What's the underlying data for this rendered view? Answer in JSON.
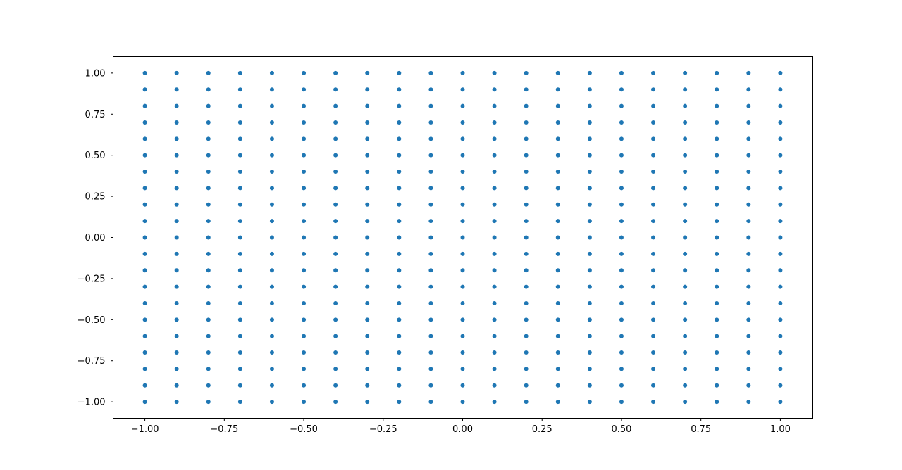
{
  "chart_data": {
    "type": "scatter",
    "title": "",
    "xlabel": "",
    "ylabel": "",
    "xlim": [
      -1.1,
      1.1
    ],
    "ylim": [
      -1.1,
      1.1
    ],
    "grid": false,
    "marker_color": "#1f77b4",
    "x_ticks": [
      -1.0,
      -0.75,
      -0.5,
      -0.25,
      0.0,
      0.25,
      0.5,
      0.75,
      1.0
    ],
    "x_tick_labels": [
      "−1.00",
      "−0.75",
      "−0.50",
      "−0.25",
      "0.00",
      "0.25",
      "0.50",
      "0.75",
      "1.00"
    ],
    "y_ticks": [
      1.0,
      0.75,
      0.5,
      0.25,
      0.0,
      -0.25,
      -0.5,
      -0.75,
      -1.0
    ],
    "y_tick_labels": [
      "1.00",
      "0.75",
      "0.50",
      "0.25",
      "0.00",
      "−0.25",
      "−0.50",
      "−0.75",
      "−1.00"
    ],
    "series": [
      {
        "grid_x": [
          -1.0,
          -0.9,
          -0.8,
          -0.7,
          -0.6,
          -0.5,
          -0.4,
          -0.3,
          -0.2,
          -0.1,
          0.0,
          0.1,
          0.2,
          0.3,
          0.4,
          0.5,
          0.6,
          0.7,
          0.8,
          0.9,
          1.0
        ],
        "grid_y": [
          -1.0,
          -0.9,
          -0.8,
          -0.7,
          -0.6,
          -0.5,
          -0.4,
          -0.3,
          -0.2,
          -0.1,
          0.0,
          0.1,
          0.2,
          0.3,
          0.4,
          0.5,
          0.6,
          0.7,
          0.8,
          0.9,
          1.0
        ]
      }
    ]
  }
}
